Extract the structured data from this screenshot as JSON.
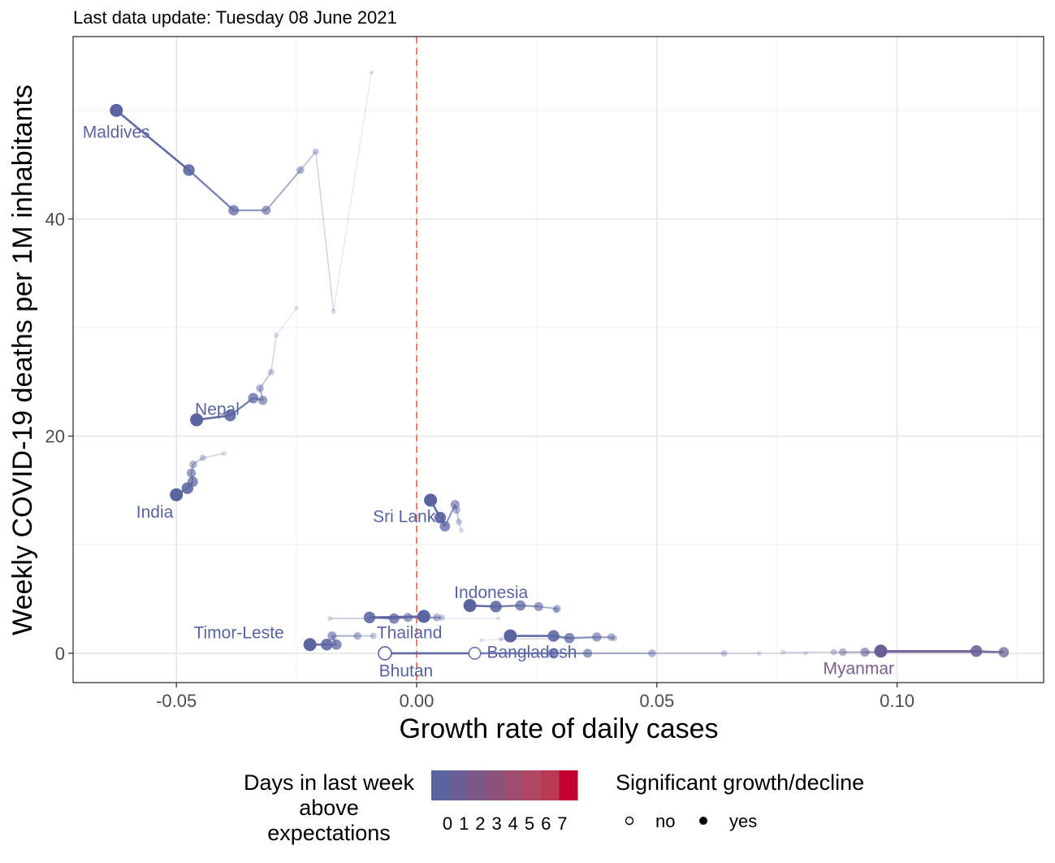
{
  "subtitle": "Last data update: Tuesday 08 June 2021",
  "chart_data": {
    "type": "scatter",
    "xlabel": "Growth rate of daily cases",
    "ylabel": "Weekly COVID-19 deaths per 1M inhabitants",
    "xlim": [
      -0.0715,
      0.1305
    ],
    "ylim": [
      -2.7,
      56.8
    ],
    "x_ticks": [
      -0.05,
      0.0,
      0.05,
      0.1
    ],
    "x_tick_labels": [
      "-0.05",
      "0.00",
      "0.05",
      "0.10"
    ],
    "y_ticks": [
      0,
      20,
      40
    ],
    "y_tick_labels": [
      "0",
      "20",
      "40"
    ],
    "grid": true,
    "reference_line": {
      "x": 0.0,
      "style": "dashed",
      "color": "#e8806e"
    },
    "series": [
      {
        "name": "Maldives",
        "color": "#5a64a0",
        "label_at": [
          -0.0625,
          48.0
        ],
        "points": [
          [
            -0.0625,
            50.0,
            0,
            "yes"
          ],
          [
            -0.0474,
            44.5,
            0,
            "yes"
          ],
          [
            -0.0381,
            40.8,
            0,
            "yes"
          ],
          [
            -0.0313,
            40.8,
            0,
            "yes"
          ],
          [
            -0.0242,
            44.5,
            0,
            "yes"
          ],
          [
            -0.021,
            46.2,
            0,
            "yes"
          ],
          [
            -0.0173,
            31.5,
            0,
            "yes"
          ],
          [
            -0.0094,
            53.5,
            0,
            "yes"
          ]
        ]
      },
      {
        "name": "Nepal",
        "color": "#5a64a0",
        "label_at": [
          -0.0415,
          22.5
        ],
        "points": [
          [
            -0.0458,
            21.5,
            0,
            "yes"
          ],
          [
            -0.0388,
            21.9,
            0,
            "yes"
          ],
          [
            -0.034,
            23.5,
            0,
            "yes"
          ],
          [
            -0.032,
            23.3,
            0,
            "yes"
          ],
          [
            -0.0326,
            24.4,
            0,
            "yes"
          ],
          [
            -0.0303,
            25.9,
            0,
            "yes"
          ],
          [
            -0.0292,
            29.3,
            0,
            "yes"
          ],
          [
            -0.025,
            31.8,
            0,
            "yes"
          ]
        ]
      },
      {
        "name": "India",
        "color": "#5a64a0",
        "label_at": [
          -0.0545,
          13.0
        ],
        "points": [
          [
            -0.05,
            14.6,
            0,
            "yes"
          ],
          [
            -0.0477,
            15.2,
            0,
            "yes"
          ],
          [
            -0.0466,
            15.8,
            0,
            "yes"
          ],
          [
            -0.0469,
            16.6,
            0,
            "yes"
          ],
          [
            -0.0465,
            17.4,
            0,
            "yes"
          ],
          [
            -0.0445,
            18.0,
            0,
            "yes"
          ],
          [
            -0.0401,
            18.4,
            0,
            "yes"
          ]
        ]
      },
      {
        "name": "Sri Lanka",
        "color": "#5a64a0",
        "label_at": [
          -0.0016,
          12.6
        ],
        "points": [
          [
            0.0029,
            14.1,
            0,
            "yes"
          ],
          [
            0.0049,
            12.5,
            0,
            "yes"
          ],
          [
            0.0059,
            11.7,
            0,
            "yes"
          ],
          [
            0.008,
            13.7,
            0,
            "yes"
          ],
          [
            0.0083,
            13.2,
            0,
            "yes"
          ],
          [
            0.0088,
            12.1,
            0,
            "yes"
          ],
          [
            0.0093,
            11.3,
            0,
            "yes"
          ]
        ]
      },
      {
        "name": "Indonesia",
        "color": "#5a64a0",
        "label_at": [
          0.0155,
          5.6
        ],
        "points": [
          [
            0.0111,
            4.4,
            0,
            "yes"
          ],
          [
            0.0165,
            4.3,
            0,
            "yes"
          ],
          [
            0.0216,
            4.4,
            0,
            "yes"
          ],
          [
            0.0254,
            4.3,
            0,
            "yes"
          ],
          [
            0.0292,
            4.1,
            0,
            "yes"
          ],
          [
            0.029,
            4.0,
            0,
            "yes"
          ]
        ]
      },
      {
        "name": "Thailand",
        "color": "#5a64a0",
        "label_at": [
          -0.0015,
          1.9
        ],
        "points": [
          [
            0.0015,
            3.4,
            0,
            "yes"
          ],
          [
            -0.0098,
            3.3,
            0,
            "yes"
          ],
          [
            -0.0047,
            3.2,
            0,
            "yes"
          ],
          [
            -0.0018,
            3.3,
            0,
            "yes"
          ],
          [
            0.0042,
            3.3,
            0,
            "yes"
          ],
          [
            0.0052,
            3.3,
            0,
            "yes"
          ],
          [
            -0.0181,
            3.2,
            0,
            "yes"
          ],
          [
            0.017,
            3.2,
            0,
            "yes"
          ]
        ]
      },
      {
        "name": "Timor-Leste",
        "color": "#5a64a0",
        "label_at": [
          -0.037,
          1.9
        ],
        "points": [
          [
            -0.0222,
            0.8,
            0,
            "yes"
          ],
          [
            -0.0187,
            0.8,
            0,
            "yes"
          ],
          [
            -0.0167,
            0.8,
            0,
            "yes"
          ],
          [
            -0.0176,
            1.6,
            0,
            "yes"
          ],
          [
            -0.0123,
            1.6,
            0,
            "yes"
          ],
          [
            -0.009,
            1.6,
            0,
            "yes"
          ]
        ]
      },
      {
        "name": "Bangladesh",
        "color": "#5a64a0",
        "label_at": [
          0.024,
          0.1
        ],
        "points": [
          [
            0.0195,
            1.6,
            0,
            "yes"
          ],
          [
            0.0285,
            1.6,
            0,
            "yes"
          ],
          [
            0.0318,
            1.4,
            0,
            "yes"
          ],
          [
            0.0375,
            1.5,
            0,
            "yes"
          ],
          [
            0.0405,
            1.5,
            0,
            "yes"
          ],
          [
            0.0411,
            1.4,
            0,
            "yes"
          ],
          [
            0.0175,
            1.3,
            0,
            "yes"
          ],
          [
            0.0135,
            1.2,
            0,
            "yes"
          ]
        ]
      },
      {
        "name": "Bhutan",
        "color": "#5a64a0",
        "label_at": [
          -0.0022,
          -1.6
        ],
        "points": [
          [
            -0.0066,
            0.0,
            0,
            "no"
          ],
          [
            0.0121,
            0.0,
            0,
            "no"
          ],
          [
            0.0285,
            0.0,
            0,
            "yes"
          ],
          [
            0.0356,
            0.0,
            0,
            "yes"
          ],
          [
            0.049,
            0.0,
            0,
            "yes"
          ],
          [
            0.064,
            0.0,
            0,
            "yes"
          ],
          [
            0.0713,
            0.0,
            0,
            "yes"
          ],
          [
            0.081,
            0.0,
            0,
            "yes"
          ]
        ]
      },
      {
        "name": "Myanmar",
        "color": "#7a5c8a",
        "label_at": [
          0.092,
          -1.4
        ],
        "points": [
          [
            0.0966,
            0.2,
            1,
            "yes"
          ],
          [
            0.1165,
            0.2,
            1,
            "yes"
          ],
          [
            0.1222,
            0.1,
            1,
            "yes"
          ],
          [
            0.0933,
            0.1,
            1,
            "yes"
          ],
          [
            0.0887,
            0.1,
            1,
            "yes"
          ],
          [
            0.0868,
            0.1,
            1,
            "yes"
          ],
          [
            0.0762,
            0.1,
            1,
            "yes"
          ]
        ]
      }
    ],
    "point_fields": [
      "x",
      "y",
      "days_above_expectations",
      "significant"
    ],
    "legend_days": {
      "title": "Days in last week\nabove\nexpectations",
      "levels": [
        "0",
        "1",
        "2",
        "3",
        "4",
        "5",
        "6",
        "7"
      ],
      "colors": [
        "#5a64a0",
        "#6b5e94",
        "#7c5888",
        "#8d527c",
        "#9e4c70",
        "#af4664",
        "#b83a52",
        "#c40030"
      ]
    },
    "legend_significant": {
      "title": "Significant growth/decline",
      "items": [
        {
          "label": "no",
          "shape": "open-circle"
        },
        {
          "label": "yes",
          "shape": "filled-circle"
        }
      ]
    },
    "legend_position": "bottom"
  }
}
